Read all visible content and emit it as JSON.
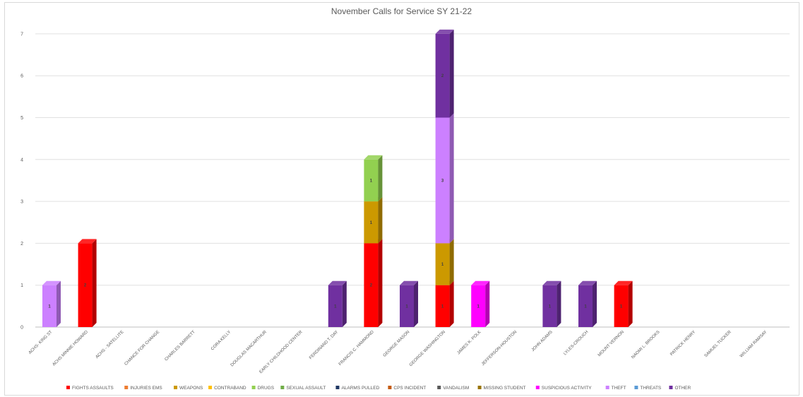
{
  "chart_data": {
    "type": "bar",
    "stacked": true,
    "title": "November Calls for Service SY 21-22",
    "ylim": [
      0,
      7
    ],
    "yticks": [
      0,
      1,
      2,
      3,
      4,
      5,
      6,
      7
    ],
    "grid": true,
    "legend_position": "bottom",
    "categories": [
      "ACHS- KING ST",
      "ACHS MINNIE HOWARD",
      "ACHS - SATELLITE",
      "CHANCE FOR CHANGE",
      "CHARLES BARRETT",
      "CORA KELLY",
      "DOUGLAS MACARTHUR",
      "EARLY CHILDHOOD CENTER",
      "FERDINAND T. DAY",
      "FRANCIS C. HAMMOND",
      "GEORGE MASON",
      "GEORGE WASHINGTON",
      "JAMES K. POLK",
      "JEFFERSON-HOUSTON",
      "JOHN ADAMS",
      "LYLES-CROUCH",
      "MOUNT VERNON",
      "NAOMI L. BROOKS",
      "PATRICK HENRY",
      "SAMUEL TUCKER",
      "WILLIAM RAMSAY"
    ],
    "series": [
      {
        "name": "FIGHTS ASSAULTS",
        "color": "#ff0000",
        "values": [
          0,
          2,
          0,
          0,
          0,
          0,
          0,
          0,
          0,
          2,
          0,
          1,
          0,
          0,
          0,
          0,
          1,
          0,
          0,
          0,
          0
        ]
      },
      {
        "name": "INJURIES EMS",
        "color": "#ed7d31",
        "values": [
          0,
          0,
          0,
          0,
          0,
          0,
          0,
          0,
          0,
          0,
          0,
          0,
          0,
          0,
          0,
          0,
          0,
          0,
          0,
          0,
          0
        ]
      },
      {
        "name": "WEAPONS",
        "color": "#cc9900",
        "values": [
          0,
          0,
          0,
          0,
          0,
          0,
          0,
          0,
          0,
          1,
          0,
          1,
          0,
          0,
          0,
          0,
          0,
          0,
          0,
          0,
          0
        ]
      },
      {
        "name": "CONTRABAND",
        "color": "#ffc000",
        "values": [
          0,
          0,
          0,
          0,
          0,
          0,
          0,
          0,
          0,
          0,
          0,
          0,
          0,
          0,
          0,
          0,
          0,
          0,
          0,
          0,
          0
        ]
      },
      {
        "name": "DRUGS",
        "color": "#92d050",
        "values": [
          0,
          0,
          0,
          0,
          0,
          0,
          0,
          0,
          0,
          1,
          0,
          0,
          0,
          0,
          0,
          0,
          0,
          0,
          0,
          0,
          0
        ]
      },
      {
        "name": "SEXUAL ASSAULT",
        "color": "#70ad47",
        "values": [
          0,
          0,
          0,
          0,
          0,
          0,
          0,
          0,
          0,
          0,
          0,
          0,
          0,
          0,
          0,
          0,
          0,
          0,
          0,
          0,
          0
        ]
      },
      {
        "name": "ALARMS PULLED",
        "color": "#203864",
        "values": [
          0,
          0,
          0,
          0,
          0,
          0,
          0,
          0,
          0,
          0,
          0,
          0,
          0,
          0,
          0,
          0,
          0,
          0,
          0,
          0,
          0
        ]
      },
      {
        "name": "CPS INCIDENT",
        "color": "#c55a11",
        "values": [
          0,
          0,
          0,
          0,
          0,
          0,
          0,
          0,
          0,
          0,
          0,
          0,
          0,
          0,
          0,
          0,
          0,
          0,
          0,
          0,
          0
        ]
      },
      {
        "name": "VANDALISM",
        "color": "#595959",
        "values": [
          0,
          0,
          0,
          0,
          0,
          0,
          0,
          0,
          0,
          0,
          0,
          0,
          0,
          0,
          0,
          0,
          0,
          0,
          0,
          0,
          0
        ]
      },
      {
        "name": "MISSING STUDENT",
        "color": "#997300",
        "values": [
          0,
          0,
          0,
          0,
          0,
          0,
          0,
          0,
          0,
          0,
          0,
          0,
          0,
          0,
          0,
          0,
          0,
          0,
          0,
          0,
          0
        ]
      },
      {
        "name": "SUSPICIOUS ACTIVITY",
        "color": "#ff00ff",
        "values": [
          0,
          0,
          0,
          0,
          0,
          0,
          0,
          0,
          0,
          0,
          0,
          0,
          1,
          0,
          0,
          0,
          0,
          0,
          0,
          0,
          0
        ]
      },
      {
        "name": "THEFT",
        "color": "#cc80ff",
        "values": [
          1,
          0,
          0,
          0,
          0,
          0,
          0,
          0,
          0,
          0,
          0,
          3,
          0,
          0,
          0,
          0,
          0,
          0,
          0,
          0,
          0
        ]
      },
      {
        "name": "THREATS",
        "color": "#5b9bd5",
        "values": [
          0,
          0,
          0,
          0,
          0,
          0,
          0,
          0,
          0,
          0,
          0,
          0,
          0,
          0,
          0,
          0,
          0,
          0,
          0,
          0,
          0
        ]
      },
      {
        "name": "OTHER",
        "color": "#7030a0",
        "values": [
          0,
          0,
          0,
          0,
          0,
          0,
          0,
          0,
          1,
          0,
          1,
          2,
          0,
          0,
          1,
          1,
          0,
          0,
          0,
          0,
          0
        ]
      }
    ]
  }
}
